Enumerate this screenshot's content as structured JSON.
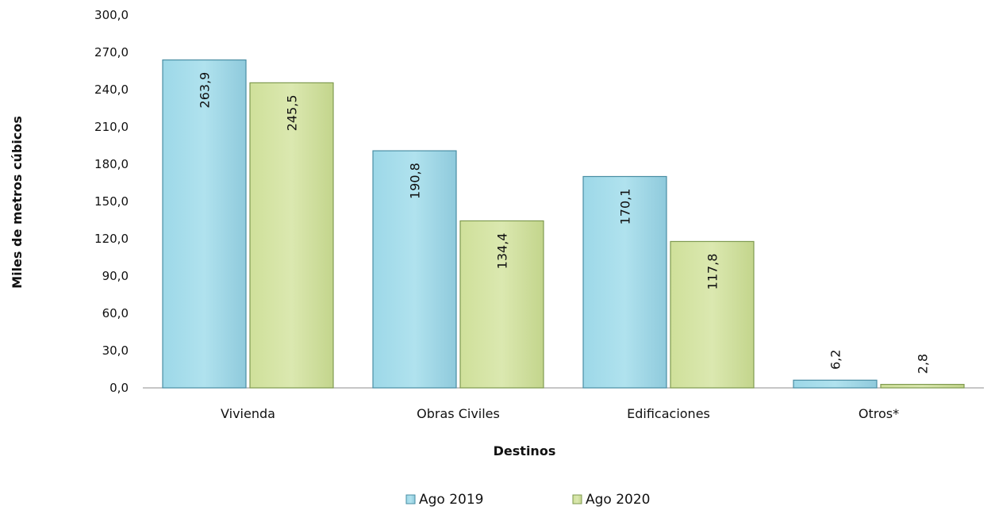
{
  "chart_data": {
    "type": "bar",
    "categories": [
      "Vivienda",
      "Obras Civiles",
      "Edificaciones",
      "Otros*"
    ],
    "series": [
      {
        "name": "Ago 2019",
        "values": [
          263.9,
          190.8,
          170.1,
          6.2
        ],
        "labels": [
          "263,9",
          "190,8",
          "170,1",
          "6,2"
        ],
        "color": "#a6dcea",
        "edge": "#4a8ea3"
      },
      {
        "name": "Ago 2020",
        "values": [
          245.5,
          134.4,
          117.8,
          2.8
        ],
        "labels": [
          "245,5",
          "134,4",
          "117,8",
          "2,8"
        ],
        "color": "#d4e3a2",
        "edge": "#7e9a4f"
      }
    ],
    "y_ticks": [
      "0,0",
      "30,0",
      "60,0",
      "90,0",
      "120,0",
      "150,0",
      "180,0",
      "210,0",
      "240,0",
      "270,0",
      "300,0"
    ],
    "ylim": [
      0,
      300
    ],
    "xlabel": "Destinos",
    "ylabel": "Miles de metros cúbicos",
    "legend_position": "bottom",
    "grid": false
  }
}
